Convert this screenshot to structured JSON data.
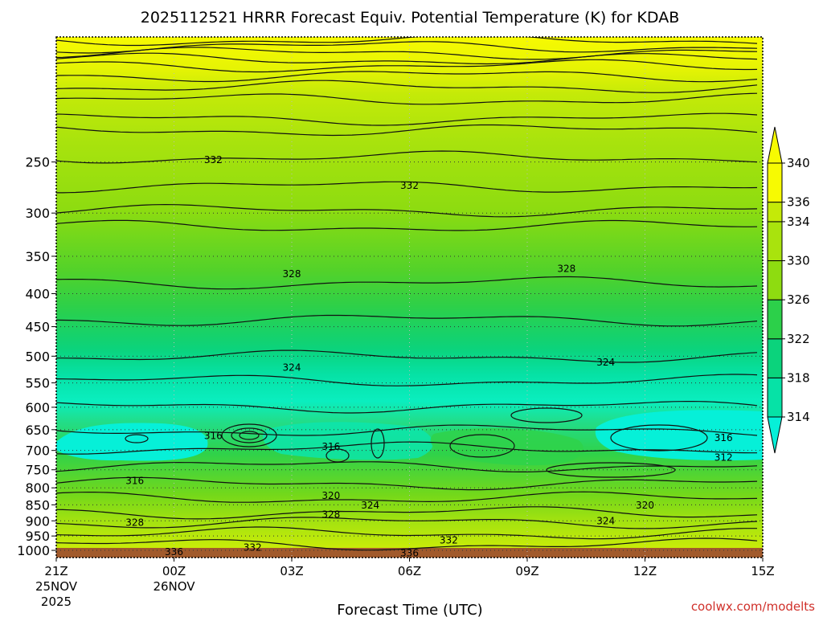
{
  "chart_data": {
    "type": "heatmap",
    "title": "2025112521 HRRR Forecast Equiv. Potential Temperature (K) for KDAB",
    "xlabel": "Forecast Time (UTC)",
    "ylabel": "",
    "x_ticks": [
      {
        "hour": 0,
        "label": "21Z",
        "label2": "25NOV",
        "label3": "2025"
      },
      {
        "hour": 3,
        "label": "00Z",
        "label2": "26NOV",
        "label3": ""
      },
      {
        "hour": 6,
        "label": "03Z",
        "label2": "",
        "label3": ""
      },
      {
        "hour": 9,
        "label": "06Z",
        "label2": "",
        "label3": ""
      },
      {
        "hour": 12,
        "label": "09Z",
        "label2": "",
        "label3": ""
      },
      {
        "hour": 15,
        "label": "12Z",
        "label2": "",
        "label3": ""
      },
      {
        "hour": 18,
        "label": "15Z",
        "label2": "",
        "label3": ""
      }
    ],
    "xlim_hours": [
      0,
      18
    ],
    "y_ticks_hPa": [
      250,
      300,
      350,
      400,
      450,
      500,
      550,
      600,
      650,
      700,
      750,
      800,
      850,
      900,
      950,
      1000
    ],
    "ylim_hPa": [
      1026,
      160
    ],
    "y_scale": "log",
    "grid": true,
    "colorbar": {
      "levels": [
        314,
        318,
        322,
        326,
        330,
        334,
        336,
        340
      ],
      "extend": "both",
      "position": "right"
    },
    "contour_interval_K": 2,
    "contour_labels": [
      {
        "value": "332",
        "hour": 4.0,
        "hPa": 248
      },
      {
        "value": "332",
        "hour": 9.0,
        "hPa": 272
      },
      {
        "value": "328",
        "hour": 6.0,
        "hPa": 373
      },
      {
        "value": "328",
        "hour": 13.0,
        "hPa": 366
      },
      {
        "value": "324",
        "hour": 6.0,
        "hPa": 521
      },
      {
        "value": "324",
        "hour": 14.0,
        "hPa": 511
      },
      {
        "value": "316",
        "hour": 4.0,
        "hPa": 664
      },
      {
        "value": "316",
        "hour": 7.0,
        "hPa": 691
      },
      {
        "value": "316",
        "hour": 17.0,
        "hPa": 669
      },
      {
        "value": "312",
        "hour": 17.0,
        "hPa": 718
      },
      {
        "value": "316",
        "hour": 2.0,
        "hPa": 780
      },
      {
        "value": "320",
        "hour": 7.0,
        "hPa": 823
      },
      {
        "value": "320",
        "hour": 15.0,
        "hPa": 851
      },
      {
        "value": "324",
        "hour": 8.0,
        "hPa": 852
      },
      {
        "value": "328",
        "hour": 2.0,
        "hPa": 906
      },
      {
        "value": "328",
        "hour": 7.0,
        "hPa": 880
      },
      {
        "value": "324",
        "hour": 14.0,
        "hPa": 900
      },
      {
        "value": "332",
        "hour": 10.0,
        "hPa": 965
      },
      {
        "value": "332",
        "hour": 5.0,
        "hPa": 990
      },
      {
        "value": "336",
        "hour": 3.0,
        "hPa": 1005
      },
      {
        "value": "336",
        "hour": 9.0,
        "hPa": 1010
      }
    ],
    "credit": "coolwx.com/modelts"
  }
}
